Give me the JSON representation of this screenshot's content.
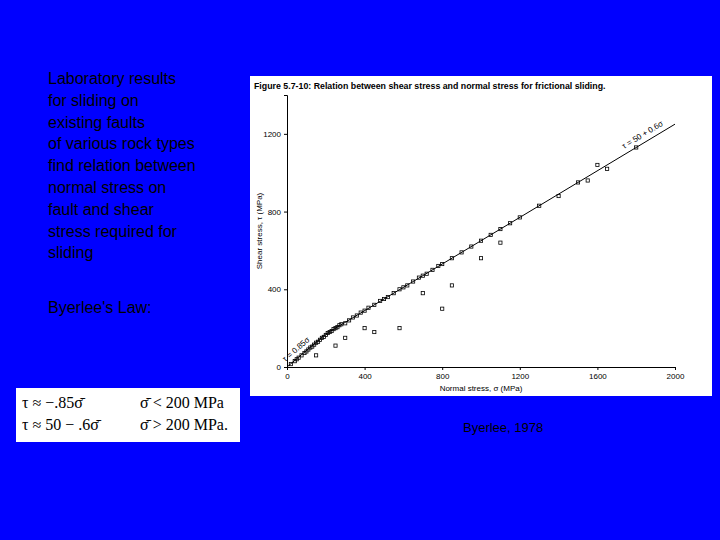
{
  "chart_data": {
    "type": "scatter",
    "title": "Figure 5.7-10: Relation between shear stress and normal stress for frictional sliding.",
    "x_label": "Normal stress, σ (MPa)",
    "y_label": "Shear stress, τ (MPa)",
    "xlim": [
      0,
      2000
    ],
    "ylim": [
      0,
      1400
    ],
    "xticks": [
      0,
      400,
      800,
      1200,
      1600,
      2000
    ],
    "yticks": [
      0,
      400,
      800,
      1200
    ],
    "grid": false,
    "series": [
      {
        "name": "τ = 0.85σ",
        "type": "line",
        "color": "#000000",
        "line_style": "solid",
        "x": [
          0,
          200
        ],
        "values": [
          0,
          170
        ]
      },
      {
        "name": "τ = 50 + 0.6σ",
        "type": "line",
        "color": "#000000",
        "line_style": "solid",
        "x": [
          200,
          2000
        ],
        "values": [
          170,
          1250
        ]
      },
      {
        "type": "scatter",
        "marker": "square",
        "color": "#000000",
        "x": [
          20,
          40,
          50,
          60,
          75,
          90,
          100,
          110,
          120,
          130,
          140,
          150,
          160,
          170,
          180,
          190,
          200,
          210,
          220,
          230,
          240,
          250,
          260,
          270,
          280,
          300,
          320,
          340,
          360,
          380,
          400,
          420,
          450,
          480,
          500,
          520,
          550,
          580,
          600,
          620,
          650,
          680,
          700,
          720,
          750,
          780,
          800,
          850,
          900,
          950,
          1000,
          1050,
          1100,
          1150,
          1200,
          1300,
          1400,
          1500,
          1550,
          1650,
          1800,
          150,
          250,
          300,
          450,
          580,
          800,
          700,
          850,
          1100,
          1000,
          400,
          1600
        ],
        "values": [
          15,
          30,
          40,
          48,
          60,
          72,
          80,
          90,
          100,
          105,
          115,
          125,
          130,
          140,
          150,
          155,
          165,
          175,
          180,
          185,
          195,
          200,
          205,
          215,
          220,
          225,
          240,
          255,
          265,
          280,
          290,
          305,
          320,
          340,
          350,
          360,
          380,
          400,
          410,
          420,
          440,
          460,
          470,
          480,
          500,
          520,
          530,
          560,
          590,
          620,
          650,
          680,
          710,
          740,
          770,
          830,
          880,
          950,
          960,
          1020,
          1130,
          60,
          110,
          150,
          180,
          200,
          300,
          380,
          420,
          640,
          560,
          200,
          1040
        ]
      }
    ]
  },
  "slide": {
    "description": [
      "Laboratory results",
      "for sliding on",
      "existing faults",
      "of various rock types",
      "find relation between",
      "normal stress on",
      "fault and shear",
      "stress required for",
      "sliding"
    ],
    "law_heading": "Byerlee's Law:",
    "equations": [
      {
        "relation": "τ ≈ −.85σ̄",
        "condition": "σ̄ < 200 MPa"
      },
      {
        "relation": "τ ≈ 50 − .6σ̄",
        "condition": "σ̄ > 200 MPa."
      }
    ],
    "credit": "Byerlee, 1978"
  }
}
